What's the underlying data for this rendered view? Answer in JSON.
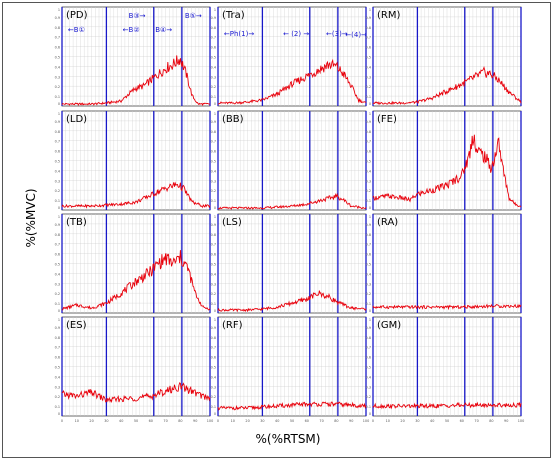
{
  "chart_data": {
    "type": "line",
    "ylabel": "%(%MVC)",
    "xlabel": "%(%RTSM)",
    "xlim": [
      0,
      100
    ],
    "ylim": [
      0,
      1
    ],
    "x_ticks": [
      "0",
      "10",
      "20",
      "30",
      "40",
      "50",
      "60",
      "70",
      "80",
      "90",
      "100"
    ],
    "y_ticks": [
      "0",
      "0.1",
      "0.2",
      "0.3",
      "0.4",
      "0.5",
      "0.6",
      "0.7",
      "0.8",
      "0.9",
      "1"
    ],
    "phase_lines_x": [
      0,
      30,
      62,
      81,
      100
    ],
    "colors": {
      "signal": "#e8000b",
      "phase_line": "#1818c8",
      "annotation": "#1a1ad0",
      "grid": "#cfcfcf"
    },
    "panels": [
      {
        "label": "(PD)",
        "annotations": [
          "←B①",
          "←B②",
          "B③→",
          "B④→",
          "B⑤→"
        ],
        "series": [
          [
            0,
            0.02
          ],
          [
            10,
            0.02
          ],
          [
            20,
            0.02
          ],
          [
            30,
            0.03
          ],
          [
            40,
            0.05
          ],
          [
            45,
            0.12
          ],
          [
            50,
            0.18
          ],
          [
            55,
            0.2
          ],
          [
            60,
            0.26
          ],
          [
            65,
            0.32
          ],
          [
            70,
            0.38
          ],
          [
            75,
            0.42
          ],
          [
            80,
            0.48
          ],
          [
            84,
            0.32
          ],
          [
            88,
            0.1
          ],
          [
            92,
            0.02
          ],
          [
            100,
            0.02
          ]
        ]
      },
      {
        "label": "(Tra)",
        "annotations": [
          "←Ph(1)→",
          "← (2) →",
          "←(3)→",
          "←(4)→"
        ],
        "series": [
          [
            0,
            0.03
          ],
          [
            10,
            0.03
          ],
          [
            20,
            0.04
          ],
          [
            30,
            0.06
          ],
          [
            40,
            0.12
          ],
          [
            50,
            0.22
          ],
          [
            60,
            0.3
          ],
          [
            70,
            0.38
          ],
          [
            75,
            0.42
          ],
          [
            80,
            0.4
          ],
          [
            85,
            0.32
          ],
          [
            90,
            0.2
          ],
          [
            95,
            0.06
          ],
          [
            100,
            0.03
          ]
        ]
      },
      {
        "label": "(RM)",
        "annotations": [],
        "series": [
          [
            0,
            0.03
          ],
          [
            10,
            0.03
          ],
          [
            20,
            0.03
          ],
          [
            30,
            0.04
          ],
          [
            40,
            0.08
          ],
          [
            50,
            0.15
          ],
          [
            60,
            0.22
          ],
          [
            70,
            0.3
          ],
          [
            75,
            0.34
          ],
          [
            80,
            0.32
          ],
          [
            85,
            0.26
          ],
          [
            92,
            0.14
          ],
          [
            100,
            0.04
          ]
        ]
      },
      {
        "label": "(LD)",
        "annotations": [],
        "series": [
          [
            0,
            0.04
          ],
          [
            10,
            0.04
          ],
          [
            20,
            0.04
          ],
          [
            30,
            0.05
          ],
          [
            40,
            0.06
          ],
          [
            50,
            0.08
          ],
          [
            60,
            0.15
          ],
          [
            70,
            0.22
          ],
          [
            78,
            0.26
          ],
          [
            82,
            0.22
          ],
          [
            88,
            0.08
          ],
          [
            95,
            0.04
          ],
          [
            100,
            0.04
          ]
        ]
      },
      {
        "label": "(BB)",
        "annotations": [],
        "series": [
          [
            0,
            0.02
          ],
          [
            10,
            0.02
          ],
          [
            20,
            0.02
          ],
          [
            30,
            0.02
          ],
          [
            40,
            0.03
          ],
          [
            50,
            0.04
          ],
          [
            60,
            0.06
          ],
          [
            70,
            0.1
          ],
          [
            80,
            0.14
          ],
          [
            85,
            0.1
          ],
          [
            90,
            0.04
          ],
          [
            100,
            0.02
          ]
        ]
      },
      {
        "label": "(FE)",
        "annotations": [],
        "series": [
          [
            0,
            0.12
          ],
          [
            10,
            0.14
          ],
          [
            20,
            0.12
          ],
          [
            25,
            0.1
          ],
          [
            30,
            0.16
          ],
          [
            40,
            0.2
          ],
          [
            50,
            0.25
          ],
          [
            60,
            0.35
          ],
          [
            65,
            0.55
          ],
          [
            68,
            0.78
          ],
          [
            70,
            0.6
          ],
          [
            75,
            0.55
          ],
          [
            80,
            0.42
          ],
          [
            85,
            0.68
          ],
          [
            88,
            0.4
          ],
          [
            92,
            0.12
          ],
          [
            96,
            0.06
          ],
          [
            100,
            0.04
          ]
        ]
      },
      {
        "label": "(TB)",
        "annotations": [],
        "series": [
          [
            0,
            0.04
          ],
          [
            10,
            0.08
          ],
          [
            20,
            0.05
          ],
          [
            30,
            0.1
          ],
          [
            40,
            0.2
          ],
          [
            50,
            0.32
          ],
          [
            60,
            0.42
          ],
          [
            65,
            0.5
          ],
          [
            70,
            0.55
          ],
          [
            75,
            0.5
          ],
          [
            80,
            0.56
          ],
          [
            85,
            0.45
          ],
          [
            90,
            0.2
          ],
          [
            95,
            0.06
          ],
          [
            100,
            0.04
          ]
        ]
      },
      {
        "label": "(LS)",
        "annotations": [],
        "series": [
          [
            0,
            0.03
          ],
          [
            10,
            0.03
          ],
          [
            20,
            0.03
          ],
          [
            30,
            0.04
          ],
          [
            40,
            0.06
          ],
          [
            50,
            0.1
          ],
          [
            60,
            0.14
          ],
          [
            68,
            0.2
          ],
          [
            75,
            0.16
          ],
          [
            82,
            0.1
          ],
          [
            90,
            0.05
          ],
          [
            100,
            0.04
          ]
        ]
      },
      {
        "label": "(RA)",
        "annotations": [],
        "series": [
          [
            0,
            0.06
          ],
          [
            20,
            0.06
          ],
          [
            40,
            0.06
          ],
          [
            60,
            0.06
          ],
          [
            80,
            0.07
          ],
          [
            100,
            0.07
          ]
        ]
      },
      {
        "label": "(ES)",
        "annotations": [],
        "series": [
          [
            0,
            0.22
          ],
          [
            10,
            0.2
          ],
          [
            20,
            0.24
          ],
          [
            30,
            0.16
          ],
          [
            40,
            0.17
          ],
          [
            50,
            0.18
          ],
          [
            60,
            0.2
          ],
          [
            70,
            0.25
          ],
          [
            80,
            0.3
          ],
          [
            88,
            0.25
          ],
          [
            95,
            0.2
          ],
          [
            100,
            0.18
          ]
        ]
      },
      {
        "label": "(RF)",
        "annotations": [],
        "series": [
          [
            0,
            0.08
          ],
          [
            20,
            0.08
          ],
          [
            40,
            0.1
          ],
          [
            60,
            0.12
          ],
          [
            80,
            0.12
          ],
          [
            100,
            0.1
          ]
        ]
      },
      {
        "label": "(GM)",
        "annotations": [],
        "series": [
          [
            0,
            0.1
          ],
          [
            20,
            0.1
          ],
          [
            40,
            0.1
          ],
          [
            60,
            0.11
          ],
          [
            80,
            0.11
          ],
          [
            100,
            0.11
          ]
        ]
      }
    ]
  }
}
